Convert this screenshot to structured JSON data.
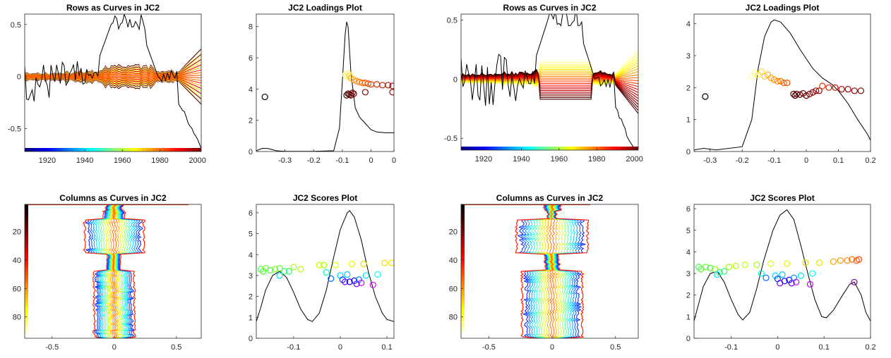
{
  "chart_data": [
    {
      "type": "line",
      "title": "Rows as Curves in JC2",
      "xlim": [
        1908,
        2002
      ],
      "ylim": [
        -0.72,
        0.6
      ],
      "xticks": [
        "1920",
        "1940",
        "1960",
        "1980",
        "2000"
      ],
      "yticks": [
        "-0.5",
        "0",
        "0.5"
      ],
      "colorbar": "jet, horizontal strip along x axis",
      "curve_colors": "hot colormap, one curve per row",
      "reference_curve": "black"
    },
    {
      "type": "scatter",
      "title": "JC2 Loadings Plot",
      "xlim": [
        -0.4,
        0.08
      ],
      "ylim": [
        0,
        8.8
      ],
      "xticks": [
        "-0.3",
        "-0.2",
        "-0.1",
        "0",
        "0"
      ],
      "yticks": [
        "0",
        "2",
        "4",
        "6",
        "8"
      ],
      "density_curve": [
        [
          -0.4,
          0.05
        ],
        [
          -0.38,
          0.2
        ],
        [
          -0.36,
          0.2
        ],
        [
          -0.33,
          0.05
        ],
        [
          -0.3,
          0.01
        ],
        [
          -0.2,
          0.01
        ],
        [
          -0.13,
          0.05
        ],
        [
          -0.11,
          1.5
        ],
        [
          -0.1,
          4.5
        ],
        [
          -0.09,
          7.5
        ],
        [
          -0.085,
          8.3
        ],
        [
          -0.08,
          8
        ],
        [
          -0.07,
          5
        ],
        [
          -0.055,
          2.8
        ],
        [
          -0.04,
          2.2
        ],
        [
          -0.02,
          1.8
        ],
        [
          0,
          1.4
        ],
        [
          0.02,
          1.25
        ],
        [
          0.05,
          1.2
        ],
        [
          0.08,
          1.2
        ]
      ],
      "points": [
        {
          "x": -0.37,
          "y": 3.5,
          "color": "#000000"
        },
        {
          "x": -0.085,
          "y": 3.6,
          "color": "#3a0000"
        },
        {
          "x": -0.08,
          "y": 3.7,
          "color": "#4a0000"
        },
        {
          "x": -0.075,
          "y": 3.65,
          "color": "#550000"
        },
        {
          "x": -0.07,
          "y": 3.6,
          "color": "#600000"
        },
        {
          "x": -0.065,
          "y": 3.75,
          "color": "#700000"
        },
        {
          "x": -0.06,
          "y": 3.7,
          "color": "#7a0000"
        },
        {
          "x": -0.02,
          "y": 3.8,
          "color": "#8a0000"
        },
        {
          "x": 0.075,
          "y": 3.8,
          "color": "#a00000"
        },
        {
          "x": -0.09,
          "y": 4.9,
          "color": "#ffff90"
        },
        {
          "x": -0.085,
          "y": 4.8,
          "color": "#ffff70"
        },
        {
          "x": -0.08,
          "y": 5.0,
          "color": "#ffee50"
        },
        {
          "x": -0.075,
          "y": 4.85,
          "color": "#ffd030"
        },
        {
          "x": -0.07,
          "y": 4.7,
          "color": "#ffb020"
        },
        {
          "x": -0.06,
          "y": 4.6,
          "color": "#ff9a10"
        },
        {
          "x": -0.05,
          "y": 4.5,
          "color": "#ff8a00"
        },
        {
          "x": -0.04,
          "y": 4.45,
          "color": "#ff7a00"
        },
        {
          "x": -0.03,
          "y": 4.4,
          "color": "#ff6a00"
        },
        {
          "x": -0.02,
          "y": 4.4,
          "color": "#ff5a00"
        },
        {
          "x": -0.01,
          "y": 4.35,
          "color": "#f05000"
        },
        {
          "x": 0.0,
          "y": 4.3,
          "color": "#e04000"
        },
        {
          "x": 0.02,
          "y": 4.3,
          "color": "#d03000"
        },
        {
          "x": 0.04,
          "y": 4.25,
          "color": "#c02000"
        },
        {
          "x": 0.06,
          "y": 4.25,
          "color": "#b01000"
        },
        {
          "x": 0.075,
          "y": 4.2,
          "color": "#a00000"
        }
      ]
    },
    {
      "type": "line",
      "title": "Rows as Curves in JC2",
      "xlim": [
        1908,
        2002
      ],
      "ylim": [
        -0.6,
        0.55
      ],
      "xticks": [
        "1920",
        "1940",
        "1960",
        "1980",
        "2000"
      ],
      "yticks": [
        "-0.5",
        "0",
        "0.5"
      ],
      "colorbar": "jet, horizontal strip along x axis",
      "curve_colors": "hot colormap, one curve per row",
      "reference_curve": "black"
    },
    {
      "type": "scatter",
      "title": "JC2 Loadings Plot",
      "xlim": [
        -0.35,
        0.2
      ],
      "ylim": [
        0,
        4.3
      ],
      "xticks": [
        "-0.3",
        "-0.2",
        "-0.1",
        "0",
        "0.1",
        "0.2"
      ],
      "yticks": [
        "0",
        "1",
        "2",
        "3",
        "4"
      ],
      "density_curve": [
        [
          -0.35,
          0.05
        ],
        [
          -0.32,
          0.1
        ],
        [
          -0.28,
          0.05
        ],
        [
          -0.2,
          0.15
        ],
        [
          -0.17,
          1.0
        ],
        [
          -0.15,
          2.6
        ],
        [
          -0.13,
          3.6
        ],
        [
          -0.11,
          4.05
        ],
        [
          -0.1,
          4.12
        ],
        [
          -0.08,
          4.05
        ],
        [
          -0.05,
          3.7
        ],
        [
          -0.02,
          3.2
        ],
        [
          0.02,
          2.6
        ],
        [
          0.05,
          2.3
        ],
        [
          0.08,
          2.1
        ],
        [
          0.1,
          1.9
        ],
        [
          0.13,
          1.5
        ],
        [
          0.16,
          1.0
        ],
        [
          0.19,
          0.55
        ],
        [
          0.2,
          0.35
        ]
      ],
      "points": [
        {
          "x": -0.315,
          "y": 1.72,
          "color": "#000000"
        },
        {
          "x": -0.17,
          "y": 2.35,
          "color": "#ffff90"
        },
        {
          "x": -0.16,
          "y": 2.45,
          "color": "#ffff70"
        },
        {
          "x": -0.15,
          "y": 2.4,
          "color": "#ffee50"
        },
        {
          "x": -0.14,
          "y": 2.5,
          "color": "#ffd840"
        },
        {
          "x": -0.13,
          "y": 2.35,
          "color": "#ffc030"
        },
        {
          "x": -0.12,
          "y": 2.4,
          "color": "#ffb020"
        },
        {
          "x": -0.11,
          "y": 2.3,
          "color": "#ffa010"
        },
        {
          "x": -0.1,
          "y": 2.25,
          "color": "#ff9000"
        },
        {
          "x": -0.09,
          "y": 2.2,
          "color": "#ff8000"
        },
        {
          "x": -0.08,
          "y": 2.2,
          "color": "#ff7000"
        },
        {
          "x": -0.07,
          "y": 2.15,
          "color": "#ff6000"
        },
        {
          "x": -0.06,
          "y": 2.15,
          "color": "#ff5000"
        },
        {
          "x": -0.04,
          "y": 1.8,
          "color": "#4a0000"
        },
        {
          "x": -0.035,
          "y": 1.75,
          "color": "#3a0000"
        },
        {
          "x": -0.03,
          "y": 1.8,
          "color": "#550000"
        },
        {
          "x": -0.02,
          "y": 1.78,
          "color": "#600000"
        },
        {
          "x": -0.01,
          "y": 1.82,
          "color": "#6a0000"
        },
        {
          "x": 0.0,
          "y": 1.75,
          "color": "#700000"
        },
        {
          "x": 0.01,
          "y": 1.8,
          "color": "#7a0000"
        },
        {
          "x": 0.02,
          "y": 1.85,
          "color": "#800000"
        },
        {
          "x": 0.03,
          "y": 1.9,
          "color": "#8a0000"
        },
        {
          "x": 0.04,
          "y": 1.9,
          "color": "#900000"
        },
        {
          "x": 0.05,
          "y": 2.05,
          "color": "#e03000"
        },
        {
          "x": 0.07,
          "y": 2.0,
          "color": "#d02000"
        },
        {
          "x": 0.09,
          "y": 2.0,
          "color": "#c01000"
        },
        {
          "x": 0.11,
          "y": 1.95,
          "color": "#b00000"
        },
        {
          "x": 0.13,
          "y": 1.95,
          "color": "#a00000"
        },
        {
          "x": 0.15,
          "y": 1.9,
          "color": "#900000"
        },
        {
          "x": 0.17,
          "y": 1.9,
          "color": "#800000"
        }
      ]
    },
    {
      "type": "line",
      "title": "Columns as Curves in JC2",
      "xlim": [
        -0.72,
        0.7
      ],
      "ylim": [
        95,
        1
      ],
      "xticks": [
        "-0.5",
        "0",
        "0.5"
      ],
      "yticks": [
        "20",
        "40",
        "60",
        "80"
      ],
      "colorbar": "hot, vertical strip along y axis",
      "curve_colors": "jet colormap, one curve per column"
    },
    {
      "type": "scatter",
      "title": "JC2 Scores Plot",
      "xlim": [
        -0.18,
        0.115
      ],
      "ylim": [
        0,
        6.4
      ],
      "xticks": [
        "-0.1",
        "0",
        "0.1"
      ],
      "yticks": [
        "0",
        "1",
        "2",
        "3",
        "4",
        "5",
        "6"
      ],
      "density_curve": [
        [
          -0.18,
          0.8
        ],
        [
          -0.17,
          1.5
        ],
        [
          -0.16,
          2.3
        ],
        [
          -0.145,
          3.0
        ],
        [
          -0.13,
          3.2
        ],
        [
          -0.115,
          2.9
        ],
        [
          -0.1,
          2.2
        ],
        [
          -0.085,
          1.4
        ],
        [
          -0.07,
          0.9
        ],
        [
          -0.06,
          0.8
        ],
        [
          -0.045,
          1.2
        ],
        [
          -0.03,
          2.3
        ],
        [
          -0.015,
          3.8
        ],
        [
          0.0,
          5.2
        ],
        [
          0.015,
          6.0
        ],
        [
          0.02,
          6.1
        ],
        [
          0.03,
          5.8
        ],
        [
          0.045,
          4.7
        ],
        [
          0.06,
          3.2
        ],
        [
          0.075,
          2.0
        ],
        [
          0.09,
          1.2
        ],
        [
          0.1,
          0.9
        ],
        [
          0.115,
          0.8
        ]
      ],
      "points": [
        {
          "x": -0.17,
          "y": 3.3,
          "color": "#40ff40"
        },
        {
          "x": -0.165,
          "y": 3.2,
          "color": "#50ff30"
        },
        {
          "x": -0.16,
          "y": 3.35,
          "color": "#60ff20"
        },
        {
          "x": -0.15,
          "y": 3.25,
          "color": "#40ff40"
        },
        {
          "x": -0.14,
          "y": 3.3,
          "color": "#80ff10"
        },
        {
          "x": -0.13,
          "y": 3.35,
          "color": "#60ff20"
        },
        {
          "x": -0.12,
          "y": 3.2,
          "color": "#40ff60"
        },
        {
          "x": -0.13,
          "y": 3.0,
          "color": "#00e0ff"
        },
        {
          "x": -0.11,
          "y": 3.2,
          "color": "#20ff80"
        },
        {
          "x": -0.1,
          "y": 3.4,
          "color": "#a0ff00"
        },
        {
          "x": -0.085,
          "y": 3.3,
          "color": "#b0ff00"
        },
        {
          "x": -0.045,
          "y": 3.5,
          "color": "#c0ff00"
        },
        {
          "x": -0.035,
          "y": 3.5,
          "color": "#a0ff00"
        },
        {
          "x": -0.03,
          "y": 3.15,
          "color": "#00ffd0"
        },
        {
          "x": -0.02,
          "y": 2.85,
          "color": "#0070ff"
        },
        {
          "x": -0.01,
          "y": 3.5,
          "color": "#e0ff00"
        },
        {
          "x": 0.0,
          "y": 3.0,
          "color": "#00d0ff"
        },
        {
          "x": 0.005,
          "y": 2.8,
          "color": "#0040ff"
        },
        {
          "x": 0.01,
          "y": 2.7,
          "color": "#8000ff"
        },
        {
          "x": 0.015,
          "y": 3.05,
          "color": "#00c0ff"
        },
        {
          "x": 0.02,
          "y": 2.7,
          "color": "#0000ff"
        },
        {
          "x": 0.025,
          "y": 3.55,
          "color": "#f0f000"
        },
        {
          "x": 0.03,
          "y": 2.75,
          "color": "#2000ff"
        },
        {
          "x": 0.035,
          "y": 2.6,
          "color": "#6000ff"
        },
        {
          "x": 0.04,
          "y": 2.8,
          "color": "#0080ff"
        },
        {
          "x": 0.045,
          "y": 2.65,
          "color": "#c000ff"
        },
        {
          "x": 0.05,
          "y": 3.55,
          "color": "#e0e000"
        },
        {
          "x": 0.055,
          "y": 3.0,
          "color": "#00e0ff"
        },
        {
          "x": 0.07,
          "y": 2.55,
          "color": "#d000ff"
        },
        {
          "x": 0.08,
          "y": 3.05,
          "color": "#00ffff"
        },
        {
          "x": 0.095,
          "y": 3.6,
          "color": "#f0e000"
        },
        {
          "x": 0.11,
          "y": 3.6,
          "color": "#ffe000"
        }
      ]
    },
    {
      "type": "line",
      "title": "Columns as Curves in JC2",
      "xlim": [
        -0.72,
        0.68
      ],
      "ylim": [
        95,
        1
      ],
      "xticks": [
        "-0.5",
        "0",
        "0.5"
      ],
      "yticks": [
        "20",
        "40",
        "60",
        "80"
      ],
      "colorbar": "hot, vertical strip along y axis",
      "curve_colors": "jet colormap, one curve per column"
    },
    {
      "type": "scatter",
      "title": "JC2 Scores Plot",
      "xlim": [
        -0.18,
        0.2
      ],
      "ylim": [
        0,
        6.2
      ],
      "xticks": [
        "-0.1",
        "0",
        "0.1",
        "0.2"
      ],
      "yticks": [
        "0",
        "1",
        "2",
        "3",
        "4",
        "5",
        "6"
      ],
      "density_curve": [
        [
          -0.18,
          0.8
        ],
        [
          -0.17,
          1.6
        ],
        [
          -0.16,
          2.4
        ],
        [
          -0.145,
          3.0
        ],
        [
          -0.13,
          3.1
        ],
        [
          -0.115,
          2.6
        ],
        [
          -0.1,
          1.8
        ],
        [
          -0.085,
          1.1
        ],
        [
          -0.075,
          0.85
        ],
        [
          -0.06,
          1.2
        ],
        [
          -0.045,
          2.3
        ],
        [
          -0.03,
          3.6
        ],
        [
          -0.01,
          5.0
        ],
        [
          0.005,
          5.7
        ],
        [
          0.02,
          5.95
        ],
        [
          0.035,
          5.5
        ],
        [
          0.05,
          4.3
        ],
        [
          0.065,
          3.0
        ],
        [
          0.08,
          1.8
        ],
        [
          0.095,
          1.0
        ],
        [
          0.105,
          0.95
        ],
        [
          0.12,
          1.3
        ],
        [
          0.14,
          2.0
        ],
        [
          0.155,
          2.5
        ],
        [
          0.165,
          2.6
        ],
        [
          0.18,
          2.0
        ],
        [
          0.19,
          1.2
        ],
        [
          0.2,
          0.8
        ]
      ],
      "points": [
        {
          "x": -0.17,
          "y": 3.3,
          "color": "#40ff40"
        },
        {
          "x": -0.165,
          "y": 3.2,
          "color": "#50ff30"
        },
        {
          "x": -0.155,
          "y": 3.3,
          "color": "#60ff20"
        },
        {
          "x": -0.145,
          "y": 3.25,
          "color": "#40ff40"
        },
        {
          "x": -0.135,
          "y": 3.2,
          "color": "#80ff10"
        },
        {
          "x": -0.125,
          "y": 3.05,
          "color": "#30ff60"
        },
        {
          "x": -0.13,
          "y": 2.95,
          "color": "#00e0ff"
        },
        {
          "x": -0.115,
          "y": 3.1,
          "color": "#20ff80"
        },
        {
          "x": -0.105,
          "y": 3.3,
          "color": "#a0ff00"
        },
        {
          "x": -0.09,
          "y": 3.35,
          "color": "#b0ff00"
        },
        {
          "x": -0.07,
          "y": 3.4,
          "color": "#c0ff00"
        },
        {
          "x": -0.045,
          "y": 3.4,
          "color": "#a0ff00"
        },
        {
          "x": -0.035,
          "y": 3.0,
          "color": "#00ffd0"
        },
        {
          "x": -0.025,
          "y": 2.8,
          "color": "#0070ff"
        },
        {
          "x": -0.015,
          "y": 3.45,
          "color": "#e0ff00"
        },
        {
          "x": -0.005,
          "y": 2.9,
          "color": "#00d0ff"
        },
        {
          "x": 0.0,
          "y": 2.75,
          "color": "#0040ff"
        },
        {
          "x": 0.005,
          "y": 2.55,
          "color": "#8000ff"
        },
        {
          "x": 0.01,
          "y": 2.95,
          "color": "#00c0ff"
        },
        {
          "x": 0.015,
          "y": 2.65,
          "color": "#0000ff"
        },
        {
          "x": 0.02,
          "y": 3.45,
          "color": "#f0f000"
        },
        {
          "x": 0.025,
          "y": 2.7,
          "color": "#2000ff"
        },
        {
          "x": 0.03,
          "y": 2.55,
          "color": "#6000ff"
        },
        {
          "x": 0.035,
          "y": 2.8,
          "color": "#0080ff"
        },
        {
          "x": 0.04,
          "y": 2.6,
          "color": "#c000ff"
        },
        {
          "x": 0.05,
          "y": 2.9,
          "color": "#00e0ff"
        },
        {
          "x": 0.06,
          "y": 3.5,
          "color": "#e0e000"
        },
        {
          "x": 0.07,
          "y": 2.5,
          "color": "#d000ff"
        },
        {
          "x": 0.075,
          "y": 3.0,
          "color": "#00ffff"
        },
        {
          "x": 0.09,
          "y": 3.5,
          "color": "#f0e000"
        },
        {
          "x": 0.12,
          "y": 3.55,
          "color": "#ffa000"
        },
        {
          "x": 0.135,
          "y": 3.6,
          "color": "#ff9000"
        },
        {
          "x": 0.15,
          "y": 3.6,
          "color": "#ff8000"
        },
        {
          "x": 0.16,
          "y": 3.65,
          "color": "#ff7000"
        },
        {
          "x": 0.17,
          "y": 3.6,
          "color": "#ff5a00"
        },
        {
          "x": 0.175,
          "y": 3.65,
          "color": "#ff4000"
        },
        {
          "x": 0.165,
          "y": 2.6,
          "color": "#8000a0"
        }
      ]
    }
  ]
}
